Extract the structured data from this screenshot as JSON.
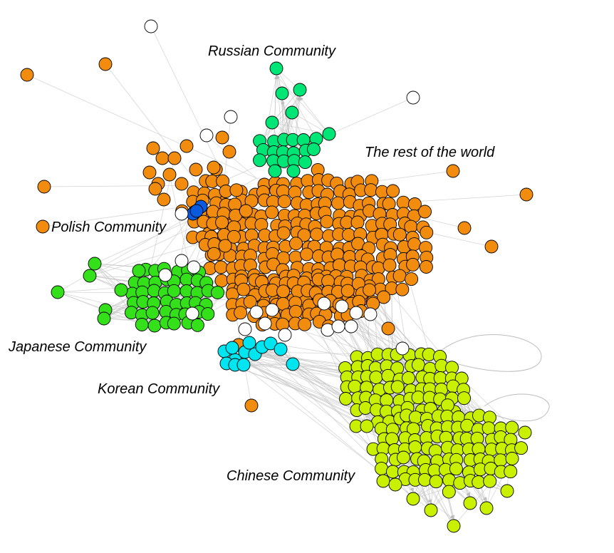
{
  "communities": {
    "russian": {
      "label": "Russian Community",
      "color": "#00e676"
    },
    "rest": {
      "label": "The rest of the world",
      "color": "#f28c0f"
    },
    "polish": {
      "label": "Polish Community",
      "color": "#0a5ae0"
    },
    "japanese": {
      "label": "Japanese Community",
      "color": "#33e01a"
    },
    "korean": {
      "label": "Korean Community",
      "color": "#00e5f0"
    },
    "chinese": {
      "label": "Chinese Community",
      "color": "#c8f000"
    },
    "unassigned": {
      "label": "",
      "color": "#ffffff"
    }
  },
  "style": {
    "edge_color": "#c4c4c4",
    "node_stroke": "#000000"
  }
}
